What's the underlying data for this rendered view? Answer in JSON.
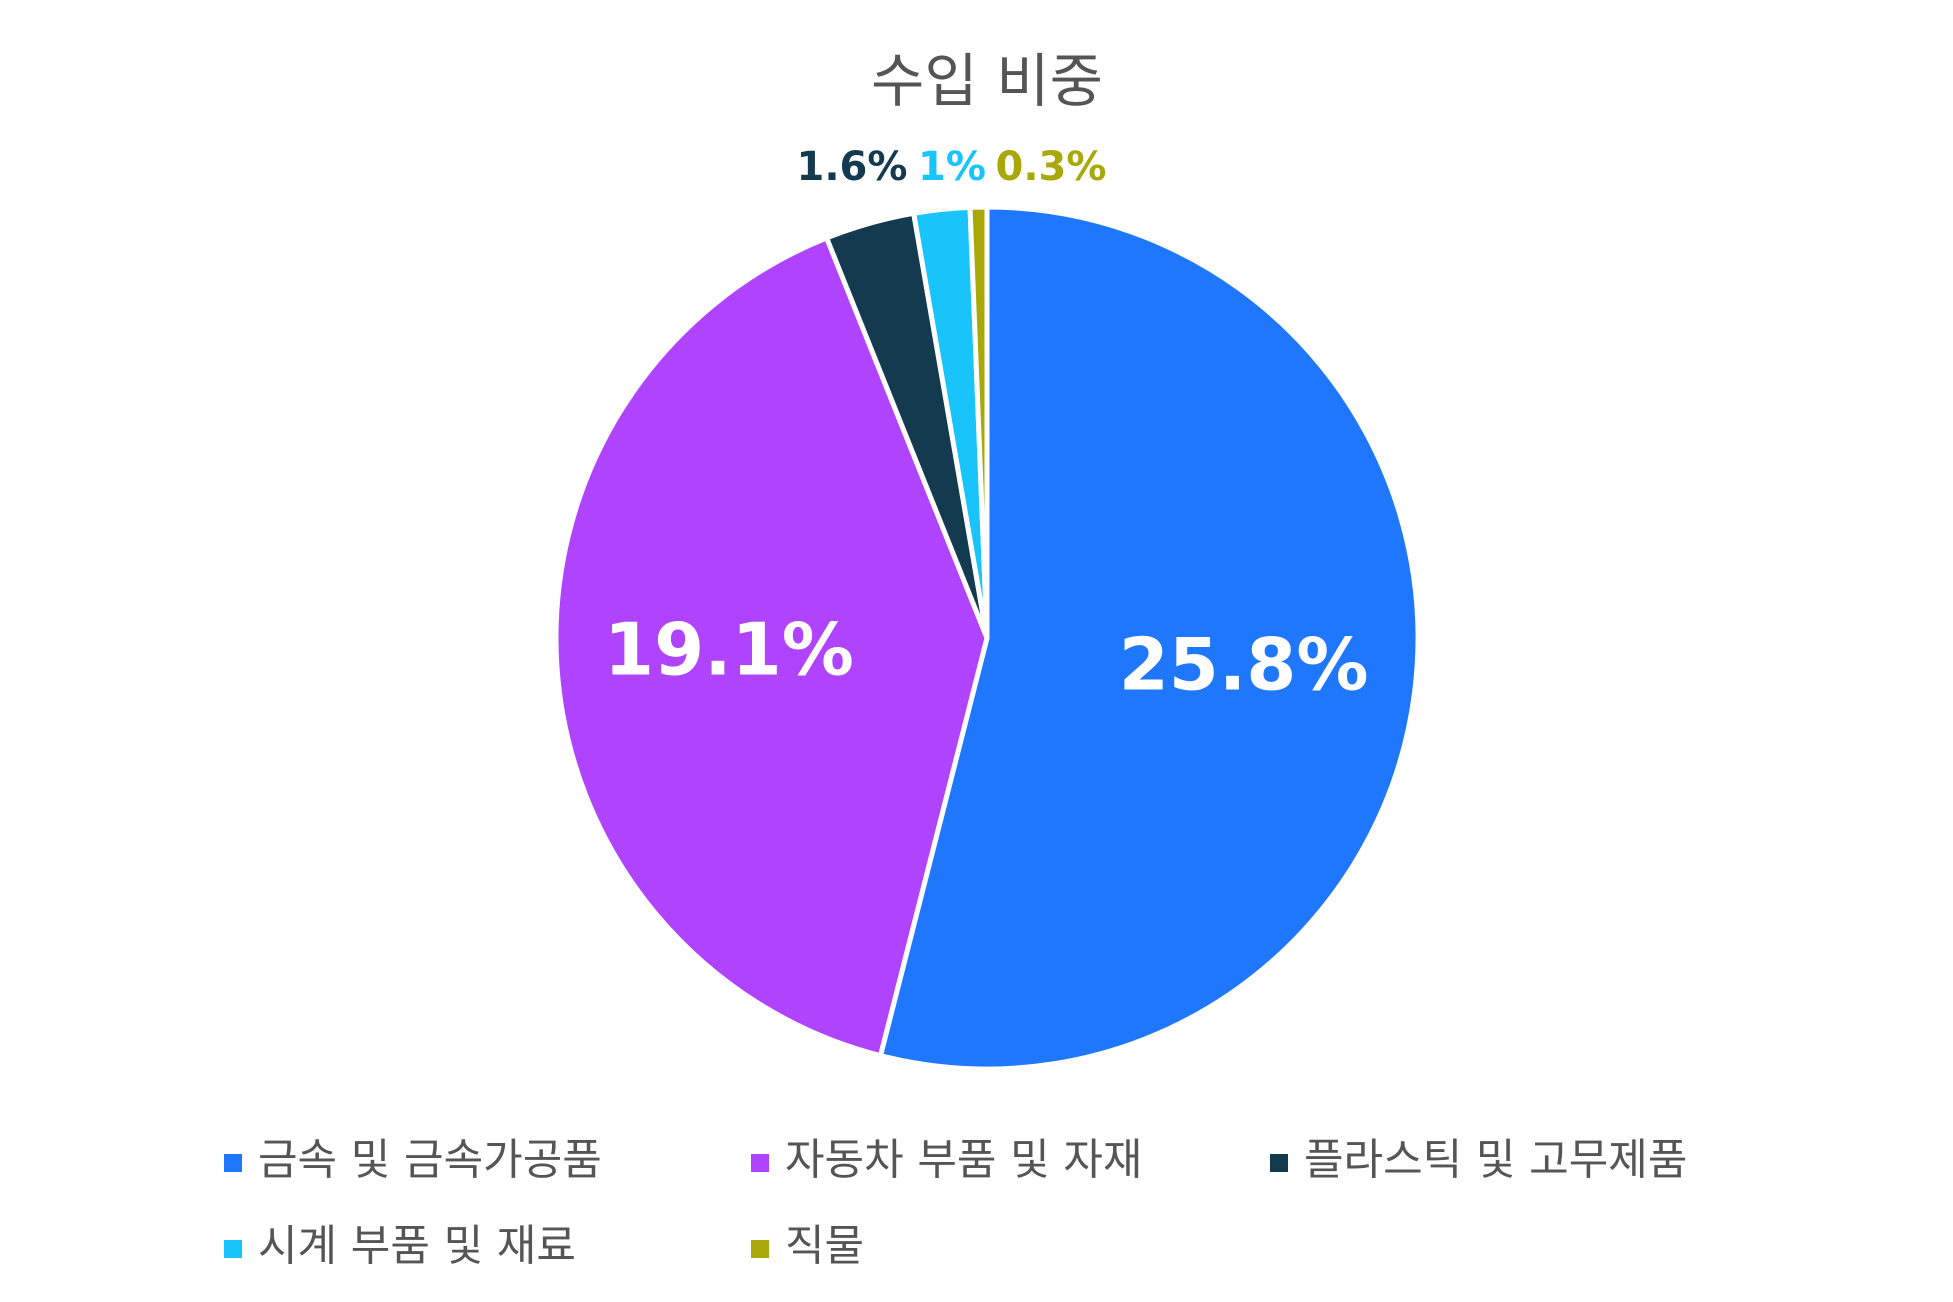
{
  "chart_data": {
    "type": "pie",
    "title": "수입 비중",
    "categories": [
      "금속 및 금속가공품",
      "자동차 부품 및 자재",
      "플라스틱 및 고무제품",
      "시계 부품 및 재료",
      "직물"
    ],
    "values": [
      25.8,
      19.1,
      1.6,
      1,
      0.3
    ],
    "value_labels": [
      "25.8%",
      "19.1%",
      "1.6%",
      "1%",
      "0.3%"
    ],
    "colors": [
      "#1f77fe",
      "#b044fe",
      "#133a4e",
      "#18c4fa",
      "#a8a80a"
    ],
    "legend": "bottom"
  }
}
